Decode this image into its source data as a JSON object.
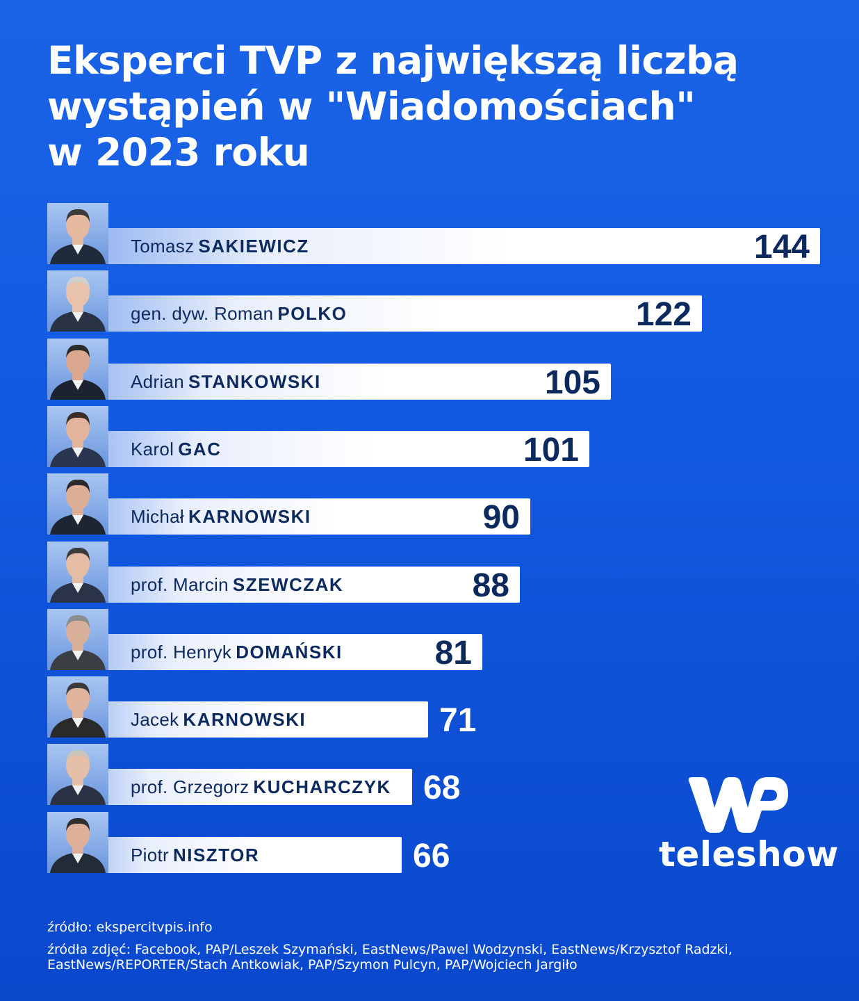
{
  "title_lines": [
    "Eksperci TVP z największą liczbą",
    "wystąpień w \"Wiadomościach\"",
    "w 2023 roku"
  ],
  "chart_data": {
    "type": "bar",
    "orientation": "horizontal",
    "title": "Eksperci TVP z największą liczbą wystąpień w \"Wiadomościach\" w 2023 roku",
    "categories": [
      "Tomasz SAKIEWICZ",
      "gen. dyw. Roman POLKO",
      "Adrian STANKOWSKI",
      "Karol GAC",
      "Michał KARNOWSKI",
      "prof. Marcin SZEWCZAK",
      "prof. Henryk DOMAŃSKI",
      "Jacek KARNOWSKI",
      "prof. Grzegorz KUCHARCZYK",
      "Piotr NISZTOR"
    ],
    "values": [
      144,
      122,
      105,
      101,
      90,
      88,
      81,
      71,
      68,
      66
    ],
    "bars": [
      {
        "first": "Tomasz",
        "last": "SAKIEWICZ",
        "value": 144
      },
      {
        "first": "gen. dyw. Roman",
        "last": "POLKO",
        "value": 122
      },
      {
        "first": "Adrian",
        "last": "STANKOWSKI",
        "value": 105
      },
      {
        "first": "Karol",
        "last": "GAC",
        "value": 101
      },
      {
        "first": "Michał",
        "last": "KARNOWSKI",
        "value": 90
      },
      {
        "first": "prof. Marcin",
        "last": "SZEWCZAK",
        "value": 88
      },
      {
        "first": "prof. Henryk",
        "last": "DOMAŃSKI",
        "value": 81
      },
      {
        "first": "Jacek",
        "last": "KARNOWSKI",
        "value": 71
      },
      {
        "first": "prof. Grzegorz",
        "last": "KUCHARCZYK",
        "value": 68
      },
      {
        "first": "Piotr",
        "last": "NISZTOR",
        "value": 66
      }
    ],
    "xlabel": "",
    "ylabel": "",
    "grid": false,
    "legend": "none",
    "colors": {
      "background": "#1159df",
      "bar": "#ffffff",
      "label_text": "#0d2a5e",
      "value_outside": "#ffffff"
    }
  },
  "logo": {
    "text": "teleshow",
    "icon": "wp-logo-icon"
  },
  "source": "źródło: ekspercitvpis.info",
  "photo_credits": "źródła zdjęć: Facebook, PAP/Leszek Szymański, EastNews/Pawel Wodzynski, EastNews/Krzysztof Radzki, EastNews/REPORTER/Stach Antkowiak, PAP/Szymon Pulcyn, PAP/Wojciech Jargiło"
}
